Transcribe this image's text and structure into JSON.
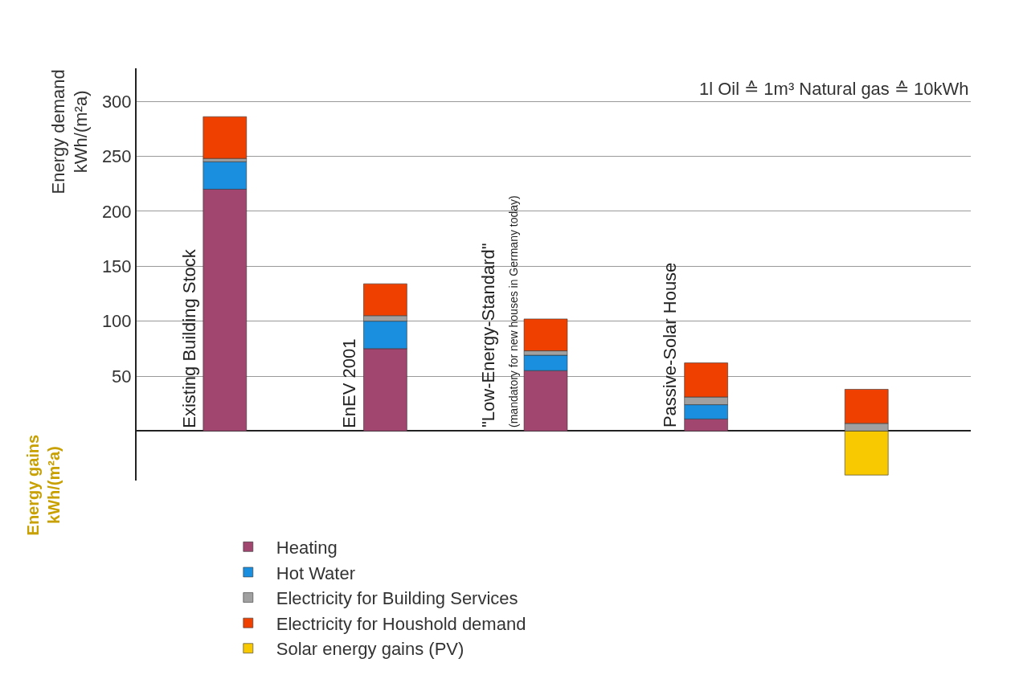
{
  "chart_data": {
    "type": "bar",
    "stacked": true,
    "categories": [
      "Existing Building Stock",
      "EnEV 2001",
      "\"Low-Energy-Standard\"\n(mandatory for new houses in Germany today)",
      "Passive-Solar House",
      null
    ],
    "ylabel": "Energy demand\nkWh/(m²a)",
    "annotations": [
      "Energy gains\nkWh/(m²a)",
      "1l Oil ≙ 1m³ Natural gas ≙ 10kWh"
    ],
    "series": [
      {
        "name": "Heating",
        "color": "#a0466f",
        "values": [
          220,
          75,
          55,
          11,
          null
        ]
      },
      {
        "name": "Hot Water",
        "color": "#1a8fe0",
        "values": [
          25,
          25,
          14,
          13,
          null
        ]
      },
      {
        "name": "Electricity for Building Services",
        "color": "#a0a0a0",
        "values": [
          3,
          5,
          4,
          7,
          7
        ]
      },
      {
        "name": "Electricity for Houshold demand",
        "color": "#f04000",
        "values": [
          38,
          29,
          29,
          31,
          31
        ]
      },
      {
        "name": "Solar energy gains (PV)",
        "color": "#f8c800",
        "values": [
          null,
          null,
          null,
          null,
          -40
        ]
      }
    ],
    "ylim": [
      -45,
      330
    ],
    "yticks": [
      50,
      100,
      150,
      200,
      250,
      300
    ],
    "grid": "y",
    "legend": "bottom"
  }
}
